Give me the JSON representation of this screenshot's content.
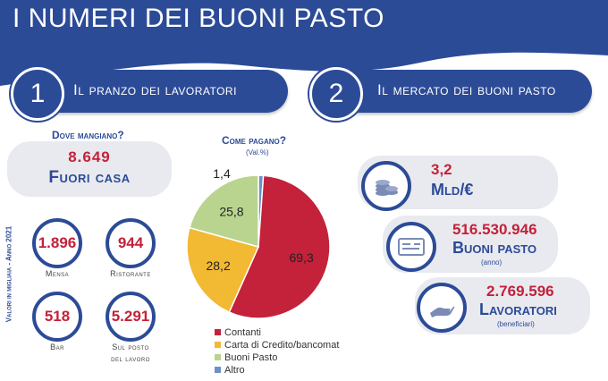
{
  "title": "I NUMERI DEI BUONI PASTO",
  "section1": {
    "number": "1",
    "label": "Il pranzo dei lavoratori"
  },
  "section2": {
    "number": "2",
    "label": "Il mercato dei buoni pasto"
  },
  "dove": {
    "heading": "Dove mangiano?",
    "main_value": "8.649",
    "main_label": "Fuori casa",
    "side_note": "Valori in migliaia - Anno 2021",
    "stats": [
      {
        "value": "1.896",
        "label": "Mensa"
      },
      {
        "value": "944",
        "label": "Ristorante"
      },
      {
        "value": "518",
        "label": "Bar"
      },
      {
        "value": "5.291",
        "label_line1": "Sul posto",
        "label_line2": "del lavoro"
      }
    ]
  },
  "come": {
    "heading": "Come pagano?",
    "subheading": "(Val.%)"
  },
  "chart_data": {
    "type": "pie",
    "title": "Come pagano?",
    "subtitle": "(Val.%)",
    "categories": [
      "Contanti",
      "Carta di Credito/bancomat",
      "Buoni Pasto",
      "Altro"
    ],
    "values": [
      69.3,
      28.2,
      25.8,
      1.4
    ],
    "labels": [
      "69,3",
      "28,2",
      "25,8",
      "1,4"
    ],
    "colors": [
      "#c4213a",
      "#f2b933",
      "#b9d48f",
      "#6f8fc8"
    ],
    "legend_position": "bottom"
  },
  "mercato": [
    {
      "icon": "coins-icon",
      "value": "3,2",
      "label": "Mld/€",
      "note": ""
    },
    {
      "icon": "check-icon",
      "value": "516.530.946",
      "label": "Buoni pasto",
      "note": "(anno)"
    },
    {
      "icon": "hand-icon",
      "value": "2.769.596",
      "label": "Lavoratori",
      "note": "(beneficiari)"
    }
  ],
  "colors": {
    "navy": "#2c4b97",
    "red": "#c4213a",
    "header": "#2c4b97"
  }
}
